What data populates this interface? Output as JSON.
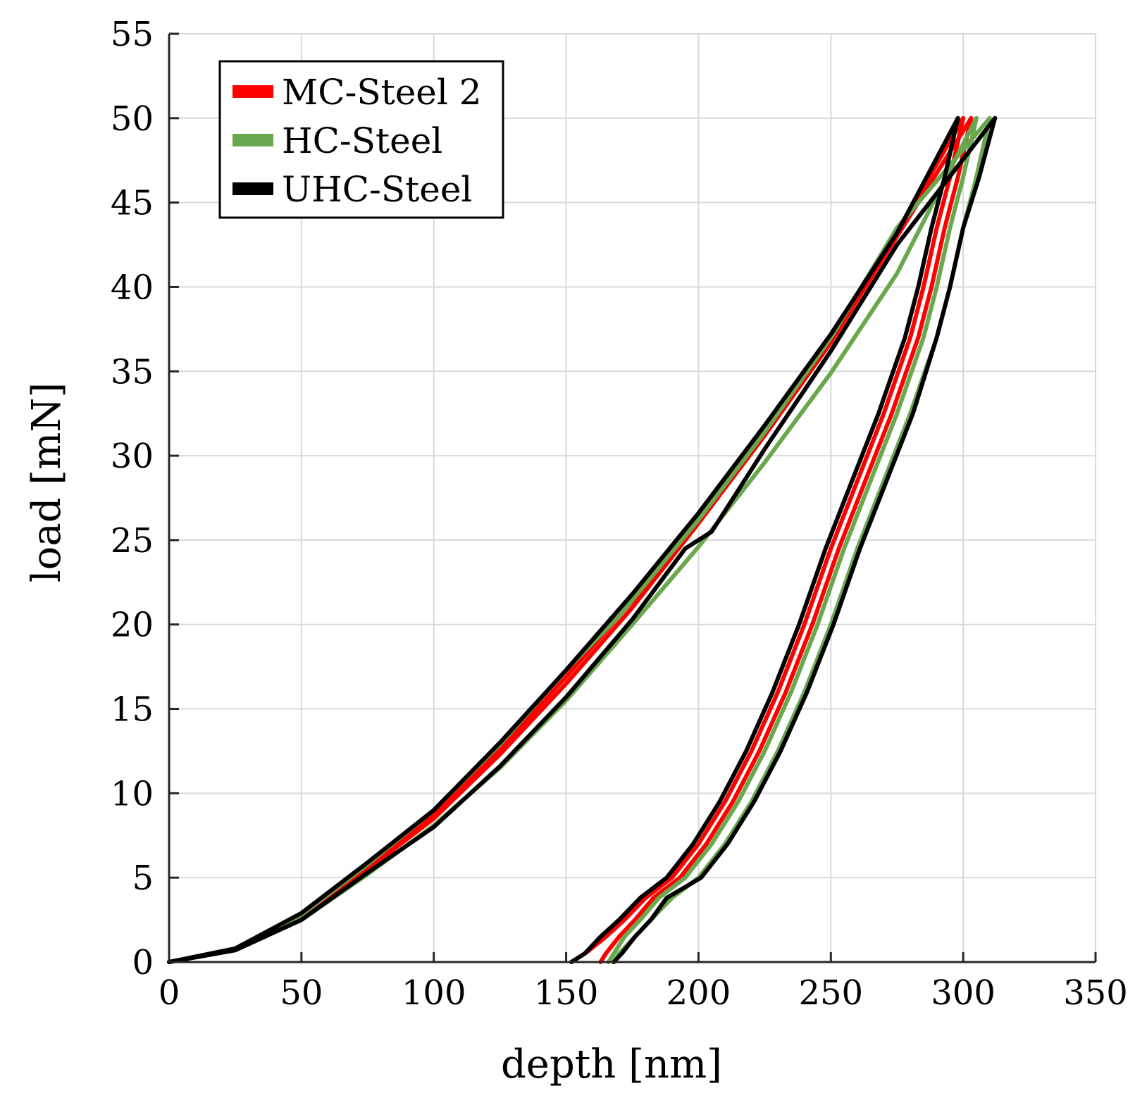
{
  "chart_data": {
    "type": "line",
    "title": "",
    "xlabel": "depth [nm]",
    "ylabel": "load [mN]",
    "xlim": [
      0,
      350
    ],
    "ylim": [
      0,
      55
    ],
    "xticks": [
      0,
      50,
      100,
      150,
      200,
      250,
      300,
      350
    ],
    "yticks": [
      0,
      5,
      10,
      15,
      20,
      25,
      30,
      35,
      40,
      45,
      50,
      55
    ],
    "xtick_labels": [
      "0",
      "50",
      "100",
      "150",
      "200",
      "250",
      "300",
      "350"
    ],
    "ytick_labels": [
      "0",
      "5",
      "10",
      "15",
      "20",
      "25",
      "30",
      "35",
      "40",
      "45",
      "50",
      "55"
    ],
    "grid": true,
    "legend_position": "top-left",
    "legend": [
      "MC-Steel 2",
      "HC-Steel",
      "UHC-Steel"
    ],
    "series": [
      {
        "name": "MC-Steel 2",
        "color": "#ff0000",
        "curves": [
          {
            "x": [
              0,
              25,
              50,
              75,
              100,
              125,
              150,
              175,
              200,
              225,
              250,
              275,
              300
            ],
            "y": [
              0,
              0.8,
              2.8,
              5.7,
              8.8,
              12.6,
              16.9,
              21.4,
              26.4,
              31.6,
              37.0,
              43.2,
              50
            ]
          },
          {
            "x": [
              300,
              295,
              290,
              285,
              280,
              270,
              260,
              250,
              240,
              230,
              220,
              210,
              200,
              190,
              180,
              172,
              165,
              158,
              152
            ],
            "y": [
              50,
              46.5,
              43.5,
              40,
              37,
              32.5,
              28.5,
              24.5,
              20,
              16,
              12.5,
              9.5,
              7,
              5,
              3.8,
              2.5,
              1.5,
              0.6,
              0
            ]
          },
          {
            "x": [
              0,
              25,
              50,
              75,
              100,
              125,
              150,
              175,
              200,
              225,
              250,
              275,
              303
            ],
            "y": [
              0,
              0.7,
              2.6,
              5.5,
              8.5,
              12.3,
              16.5,
              21.0,
              26.0,
              31.2,
              36.7,
              43.0,
              50
            ]
          },
          {
            "x": [
              303,
              298,
              293,
              288,
              283,
              273,
              263,
              253,
              243,
              233,
              223,
              213,
              203,
              193,
              183,
              176,
              170,
              165,
              163
            ],
            "y": [
              50,
              46.5,
              43.5,
              40,
              37,
              32.5,
              28.5,
              24.5,
              20,
              16,
              12.5,
              9.5,
              7,
              5,
              3.8,
              2.5,
              1.5,
              0.5,
              0
            ]
          }
        ]
      },
      {
        "name": "HC-Steel",
        "color": "#6aa84f",
        "curves": [
          {
            "x": [
              0,
              25,
              50,
              75,
              100,
              125,
              150,
              175,
              200,
              225,
              250,
              275,
              305
            ],
            "y": [
              0,
              0.7,
              2.5,
              5.2,
              8.1,
              11.5,
              15.5,
              20.0,
              24.6,
              29.6,
              34.9,
              40.8,
              50
            ]
          },
          {
            "x": [
              305,
              300,
              295,
              290,
              285,
              275,
              265,
              255,
              245,
              235,
              225,
              215,
              205,
              195,
              185,
              178,
              172,
              168,
              166
            ],
            "y": [
              50,
              46.5,
              43.5,
              40,
              37,
              32.5,
              28.5,
              24.5,
              20,
              16,
              12.5,
              9.5,
              7,
              5,
              3.8,
              2.5,
              1.5,
              0.5,
              0
            ]
          },
          {
            "x": [
              0,
              25,
              50,
              75,
              100,
              125,
              150,
              170,
              200,
              225,
              250,
              275,
              310
            ],
            "y": [
              0,
              0.8,
              2.8,
              5.8,
              9.0,
              12.9,
              17.3,
              20.5,
              26.2,
              31.4,
              37.0,
              43.5,
              50
            ]
          },
          {
            "x": [
              310,
              305,
              300,
              295,
              290,
              280,
              270,
              260,
              250,
              240,
              230,
              220,
              210,
              200,
              190,
              182,
              176,
              170,
              168
            ],
            "y": [
              50,
              46.5,
              43.5,
              40,
              37,
              32.5,
              28.5,
              24.5,
              20,
              16,
              12.5,
              9.5,
              7,
              5,
              3.8,
              2.5,
              1.5,
              0.5,
              0
            ]
          }
        ]
      },
      {
        "name": "UHC-Steel",
        "color": "#000000",
        "curves": [
          {
            "x": [
              0,
              25,
              50,
              75,
              100,
              125,
              150,
              175,
              200,
              225,
              250,
              275,
              298
            ],
            "y": [
              0,
              0.8,
              2.9,
              5.9,
              9.0,
              13.0,
              17.3,
              21.8,
              26.6,
              31.8,
              37.2,
              43.2,
              50
            ]
          },
          {
            "x": [
              0,
              25,
              50,
              75,
              100,
              125,
              150,
              175,
              195,
              205,
              225,
              250,
              275,
              312
            ],
            "y": [
              0,
              0.7,
              2.5,
              5.3,
              8.0,
              11.6,
              15.7,
              20.3,
              24.5,
              25.5,
              30.4,
              36.2,
              42.5,
              50
            ]
          },
          {
            "x": [
              298,
              293,
              288,
              283,
              278,
              268,
              258,
              248,
              238,
              228,
              218,
              208,
              198,
              188,
              178,
              170,
              163,
              157,
              152
            ],
            "y": [
              50,
              46.5,
              43.5,
              40,
              37,
              32.5,
              28.5,
              24.5,
              20,
              16,
              12.5,
              9.5,
              7,
              5,
              3.8,
              2.5,
              1.5,
              0.5,
              0
            ]
          },
          {
            "x": [
              312,
              306,
              300,
              295,
              290,
              281,
              271,
              261,
              251,
              241,
              231,
              221,
              211,
              201,
              188,
              182,
              176,
              171,
              168
            ],
            "y": [
              50,
              46.5,
              43.5,
              40,
              37,
              32.5,
              28.5,
              24.5,
              20,
              16,
              12.5,
              9.5,
              7,
              5,
              3.8,
              2.5,
              1.5,
              0.5,
              0
            ]
          }
        ]
      }
    ]
  }
}
